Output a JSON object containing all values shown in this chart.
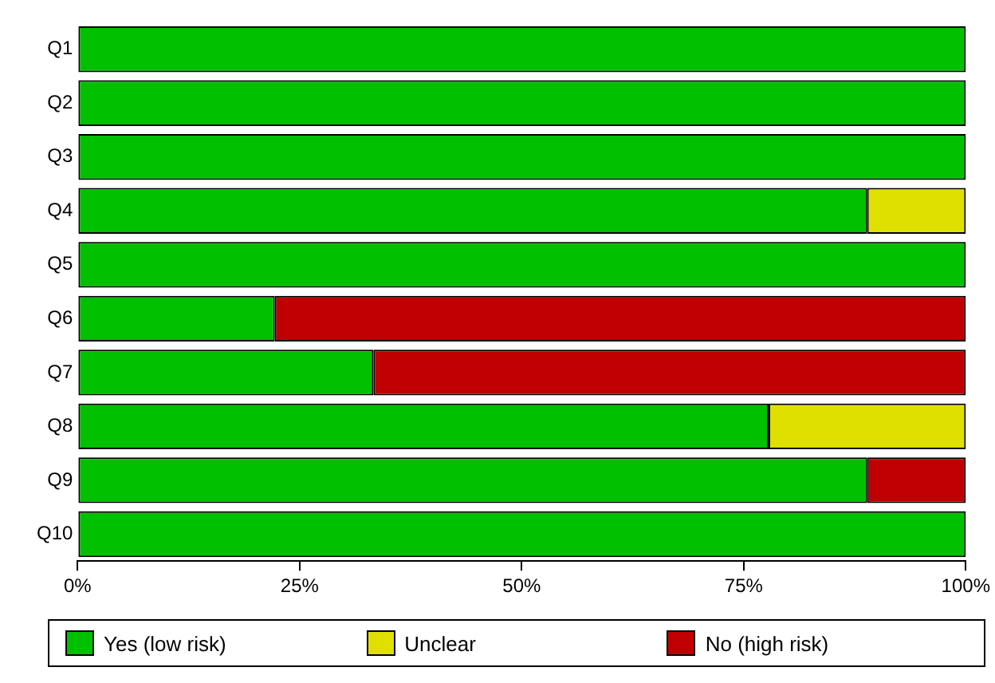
{
  "chart_data": {
    "type": "bar",
    "orientation": "horizontal",
    "stacked": true,
    "categories": [
      "Q1",
      "Q2",
      "Q3",
      "Q4",
      "Q5",
      "Q6",
      "Q7",
      "Q8",
      "Q9",
      "Q10"
    ],
    "series": [
      {
        "name": "Yes (low risk)",
        "color": "#00c000",
        "values": [
          100,
          100,
          100,
          88.9,
          100,
          22.2,
          33.3,
          77.8,
          88.9,
          100
        ]
      },
      {
        "name": "Unclear",
        "color": "#e0e000",
        "values": [
          0,
          0,
          0,
          11.1,
          0,
          0,
          0,
          22.2,
          0,
          0
        ]
      },
      {
        "name": "No (high risk)",
        "color": "#c00000",
        "values": [
          0,
          0,
          0,
          0,
          0,
          77.8,
          66.7,
          0,
          11.1,
          0
        ]
      }
    ],
    "xlim": [
      0,
      100
    ],
    "xticks": [
      {
        "value": 0,
        "label": "0%"
      },
      {
        "value": 25,
        "label": "25%"
      },
      {
        "value": 50,
        "label": "50%"
      },
      {
        "value": 75,
        "label": "75%"
      },
      {
        "value": 100,
        "label": "100%"
      }
    ],
    "grid": false,
    "legend": "bottom"
  }
}
